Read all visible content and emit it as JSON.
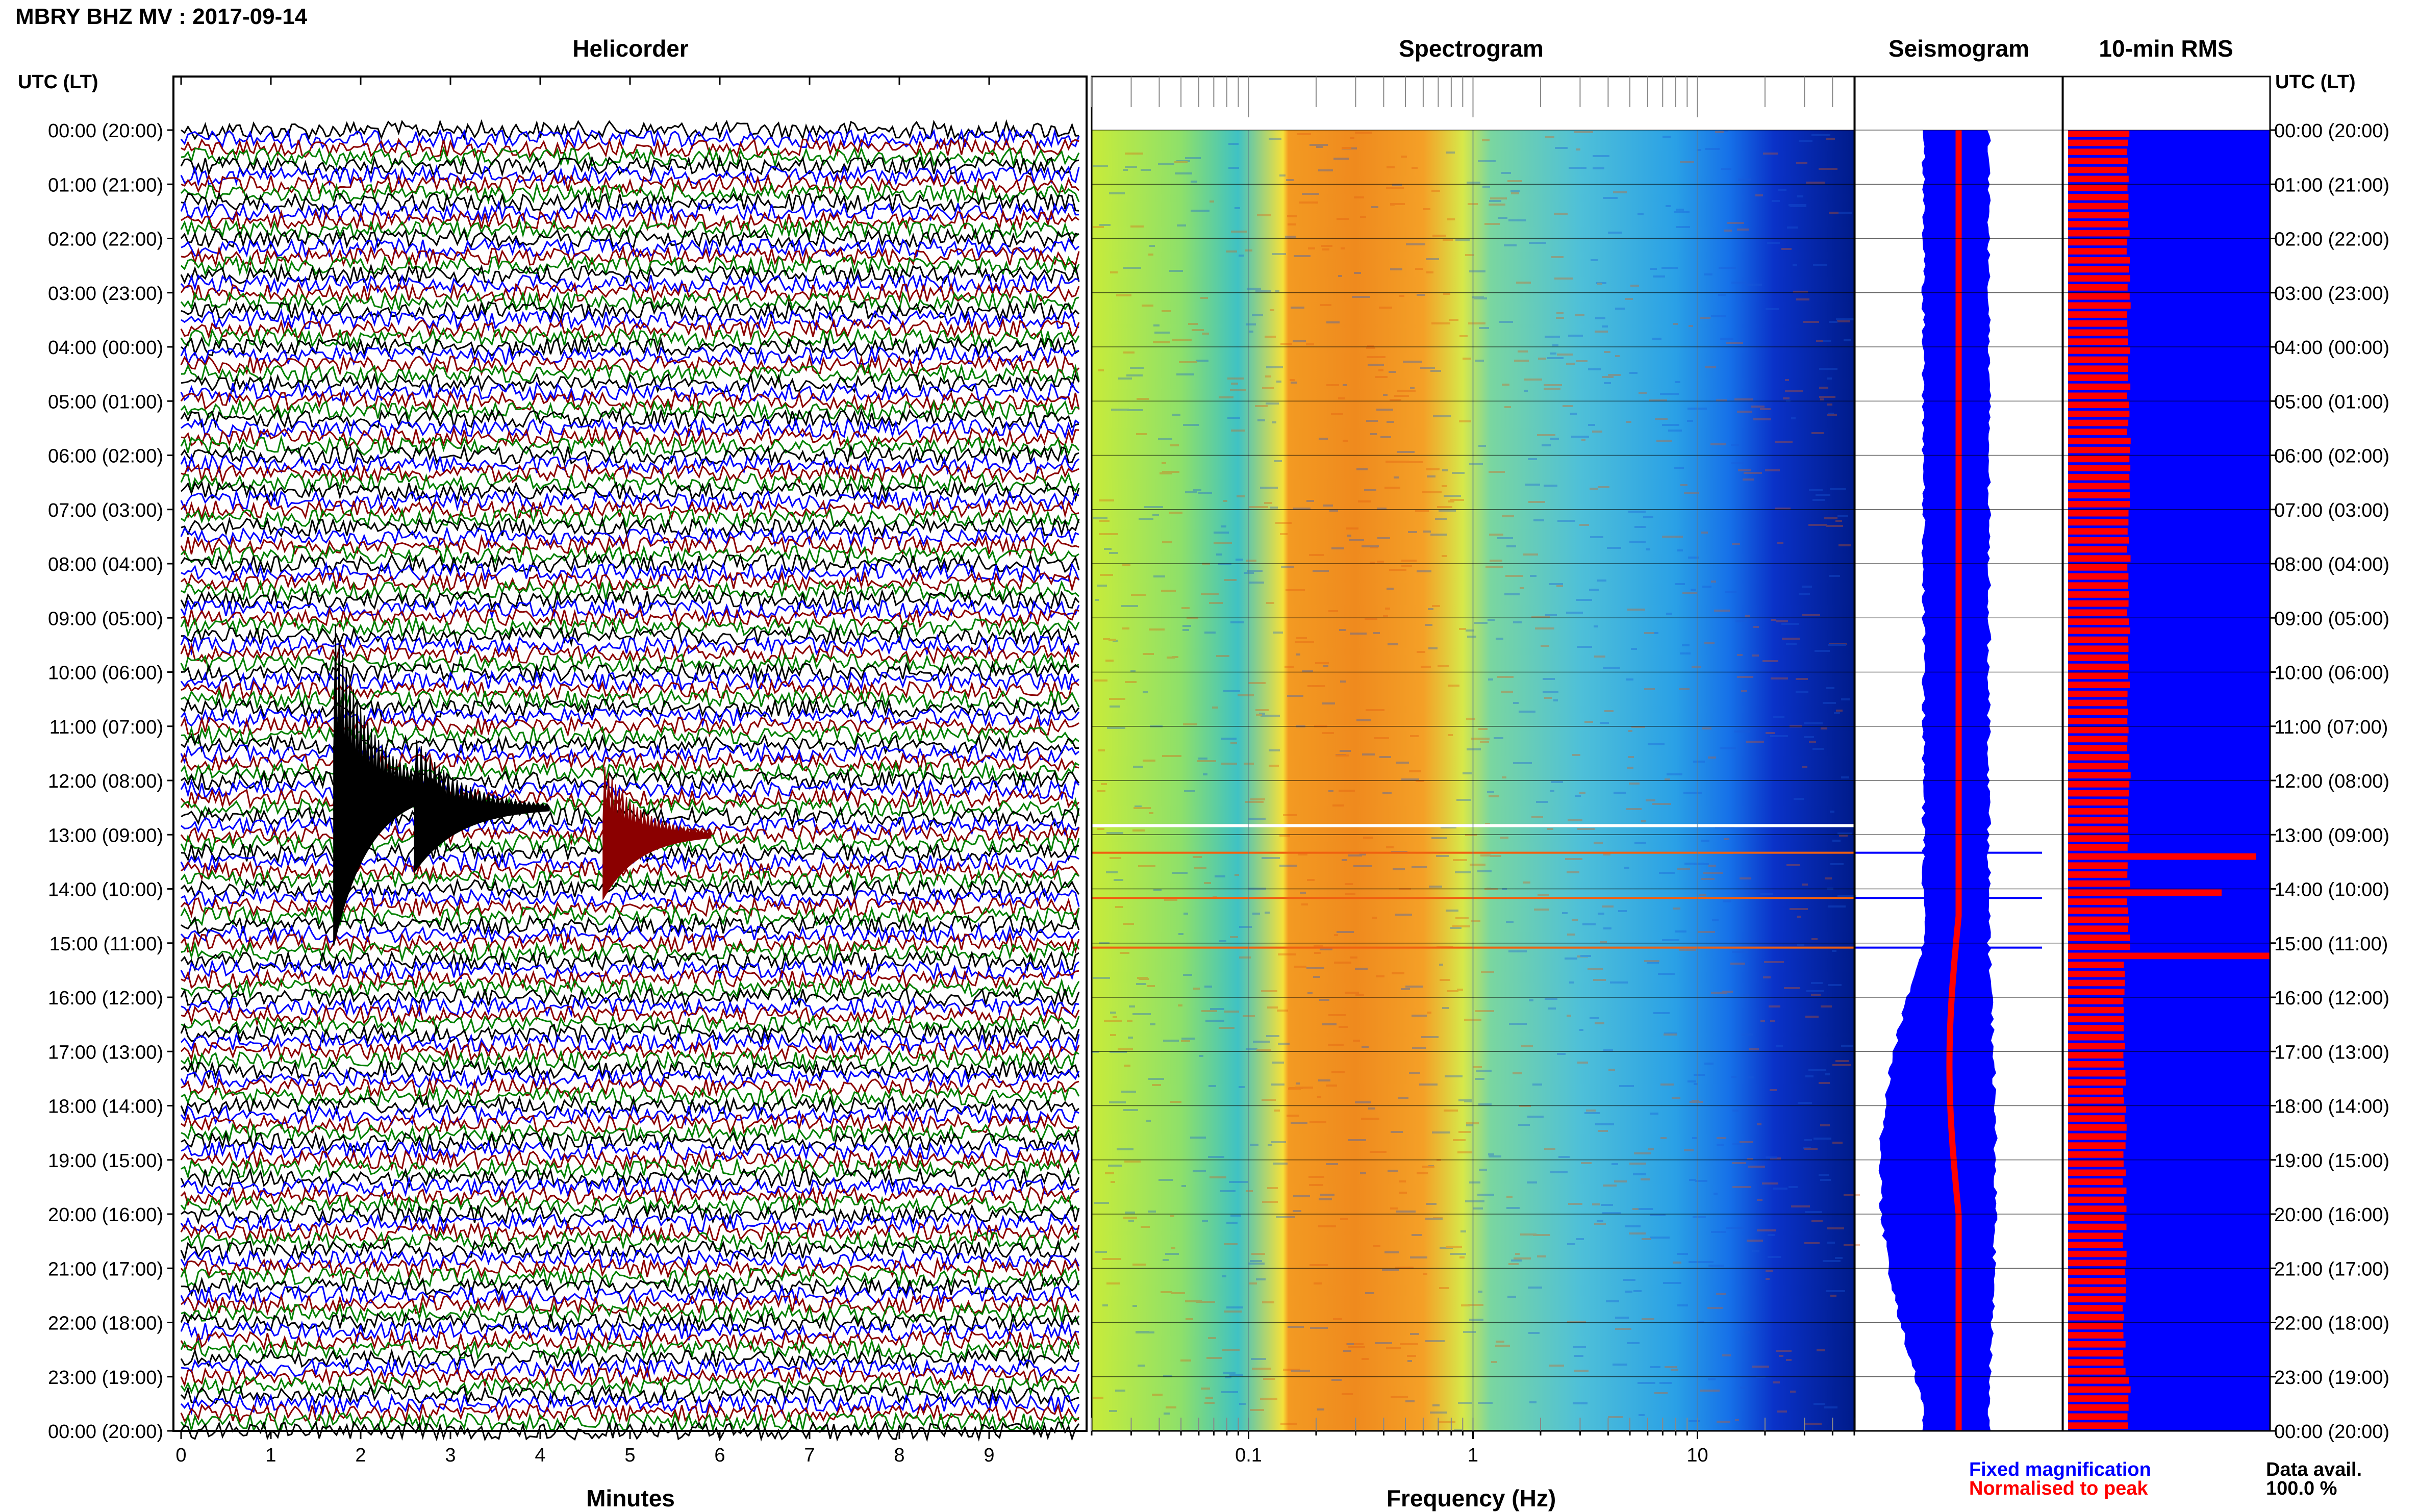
{
  "header": {
    "title": "MBRY BHZ MV : 2017-09-14"
  },
  "panels": {
    "helicorder": "Helicorder",
    "spectrogram": "Spectrogram",
    "seismogram": "Seismogram",
    "rms": "10-min RMS"
  },
  "time_axis": {
    "label": "UTC (LT)",
    "ticks": [
      "00:00 (20:00)",
      "01:00 (21:00)",
      "02:00 (22:00)",
      "03:00 (23:00)",
      "04:00 (00:00)",
      "05:00 (01:00)",
      "06:00 (02:00)",
      "07:00 (03:00)",
      "08:00 (04:00)",
      "09:00 (05:00)",
      "10:00 (06:00)",
      "11:00 (07:00)",
      "12:00 (08:00)",
      "13:00 (09:00)",
      "14:00 (10:00)",
      "15:00 (11:00)",
      "16:00 (12:00)",
      "17:00 (13:00)",
      "18:00 (14:00)",
      "19:00 (15:00)",
      "20:00 (16:00)",
      "21:00 (17:00)",
      "22:00 (18:00)",
      "23:00 (19:00)",
      "00:00 (20:00)"
    ]
  },
  "legend": {
    "fixed": "Fixed magnification",
    "normalised": "Normalised to peak",
    "avail_label": "Data avail.",
    "avail_value": "100.0 %"
  },
  "colors": {
    "trace_cycle": [
      "#000000",
      "#0000ff",
      "#8b0000",
      "#008000"
    ],
    "seismogram_fill": "#0000ff",
    "rms_line": "#ff0000",
    "rms_bg": "#0000ff",
    "rms_bar": "#ff0000"
  },
  "chart_data": [
    {
      "type": "line",
      "panel": "helicorder",
      "title": "Helicorder",
      "xlabel": "Minutes",
      "xlim": [
        0,
        10
      ],
      "x_ticks": [
        "0",
        "1",
        "2",
        "3",
        "4",
        "5",
        "6",
        "7",
        "8",
        "9"
      ],
      "line_interval_minutes": 10,
      "lines_per_hour": 6,
      "events": [
        {
          "start_time": "12:10",
          "minute": 1.7,
          "duration_min": 1.2,
          "color": "#000000",
          "amplitude": "large"
        },
        {
          "start_time": "12:30",
          "minute": 2.6,
          "duration_min": 1.5,
          "color": "#000000",
          "amplitude": "medium"
        },
        {
          "start_time": "13:00",
          "minute": 4.7,
          "duration_min": 1.2,
          "color": "#8b0000",
          "amplitude": "medium"
        }
      ]
    },
    {
      "type": "heatmap",
      "panel": "spectrogram",
      "title": "Spectrogram",
      "xlabel": "Frequency (Hz)",
      "x_scale": "log",
      "xlim": [
        0.02,
        50
      ],
      "x_ticks": [
        "0.1",
        "1",
        "10"
      ],
      "peak_band_hz": [
        0.15,
        0.6
      ],
      "notable_time_lines": [
        "12:50",
        "13:20",
        "14:10",
        "15:05"
      ]
    },
    {
      "type": "area",
      "panel": "seismogram",
      "title": "Seismogram",
      "note": "envelope widens between 15:00 and 23:00",
      "spikes": [
        "13:20",
        "14:10",
        "15:05"
      ]
    },
    {
      "type": "bar",
      "panel": "rms",
      "title": "10-min RMS",
      "series": [
        {
          "name": "Fixed magnification",
          "color": "#0000ff"
        },
        {
          "name": "Normalised to peak",
          "color": "#ff0000"
        }
      ],
      "baseline_rms": 0.3,
      "spikes": [
        {
          "time": "13:20",
          "value": 0.93
        },
        {
          "time": "14:00",
          "value": 0.76
        },
        {
          "time": "15:10",
          "value": 1.0
        }
      ]
    }
  ]
}
